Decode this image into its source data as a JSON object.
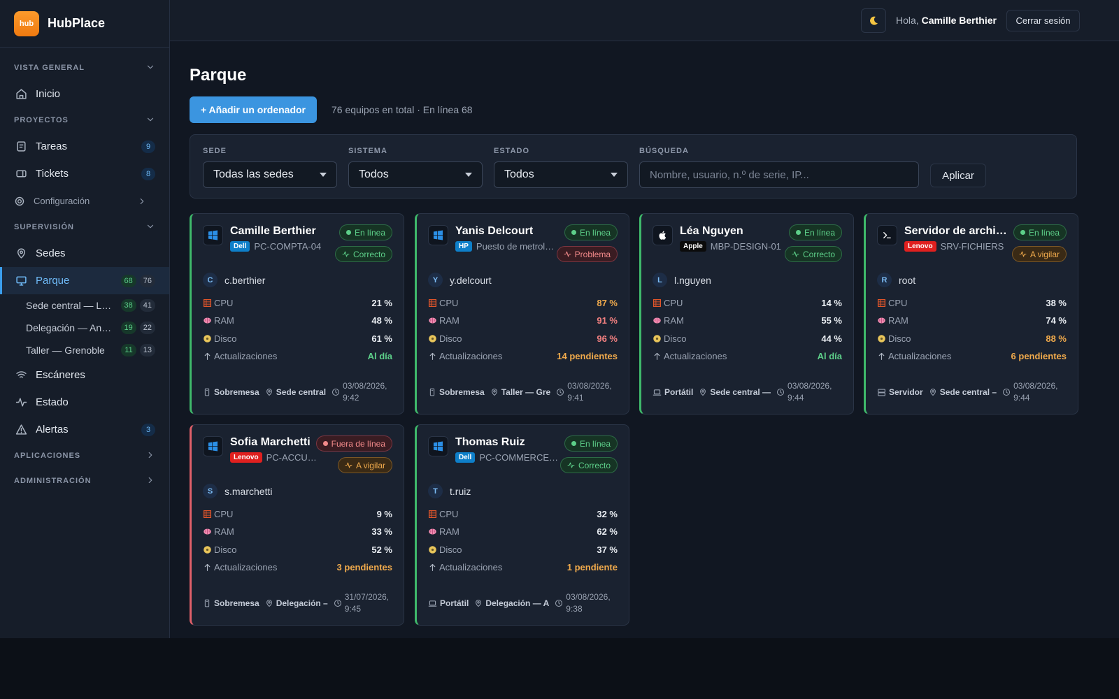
{
  "brand": {
    "logo": "hub",
    "name": "HubPlace"
  },
  "topbar": {
    "greeting": "Hola,",
    "user": "Camille Berthier",
    "logout": "Cerrar sesión"
  },
  "sidebar": {
    "sections": [
      {
        "title": "VISTA GENERAL",
        "expanded": true,
        "items": [
          {
            "label": "Inicio",
            "icon": "home"
          }
        ]
      },
      {
        "title": "PROYECTOS",
        "expanded": true,
        "items": [
          {
            "label": "Tareas",
            "icon": "task",
            "badges": [
              9
            ]
          },
          {
            "label": "Tickets",
            "icon": "ticket",
            "badges": [
              8
            ]
          },
          {
            "label": "Configuración",
            "icon": "gear",
            "minor": true
          }
        ]
      },
      {
        "title": "SUPERVISIÓN",
        "expanded": true,
        "items": [
          {
            "label": "Sedes",
            "icon": "pin"
          },
          {
            "label": "Parque",
            "icon": "monitor",
            "active": true,
            "badges": [
              68,
              76
            ],
            "children": [
              {
                "label": "Sede central — L…",
                "badges": [
                  38,
                  41
                ]
              },
              {
                "label": "Delegación — An…",
                "badges": [
                  19,
                  22
                ]
              },
              {
                "label": "Taller — Grenoble",
                "badges": [
                  11,
                  13
                ]
              }
            ]
          },
          {
            "label": "Escáneres",
            "icon": "wifi"
          },
          {
            "label": "Estado",
            "icon": "pulse"
          },
          {
            "label": "Alertas",
            "icon": "alert",
            "badges": [
              3
            ]
          }
        ]
      },
      {
        "title": "APLICACIONES",
        "expanded": false,
        "items": []
      },
      {
        "title": "ADMINISTRACIÓN",
        "expanded": false,
        "items": []
      }
    ]
  },
  "page": {
    "title": "Parque",
    "add_button": "+ Añadir un ordenador",
    "summary": "76 equipos en total · En línea 68"
  },
  "filters": {
    "selects": [
      {
        "label": "SEDE",
        "value": "Todas las sedes"
      },
      {
        "label": "SISTEMA",
        "value": "Todos"
      },
      {
        "label": "ESTADO",
        "value": "Todos"
      }
    ],
    "search": {
      "label": "BÚSQUEDA",
      "placeholder": "Nombre, usuario, n.º de serie, IP..."
    },
    "apply": "Aplicar"
  },
  "cards": [
    {
      "name": "Camille Berthier",
      "icon": "windows",
      "brand": "Dell",
      "brand_color": "#0e7fc9",
      "model": "PC-COMPTA-04",
      "status": "En línea",
      "status_tone": "good",
      "health": "Correcto",
      "health_tone": "good",
      "initial": "C",
      "user": "c.berthier",
      "metrics": [
        {
          "label": "CPU",
          "value": "21 %",
          "tone": "normal"
        },
        {
          "label": "RAM",
          "value": "48 %",
          "tone": "normal"
        },
        {
          "label": "Disco",
          "value": "61 %",
          "tone": "normal"
        },
        {
          "label": "Actualizaciones",
          "value": "Al día",
          "tone": "good"
        }
      ],
      "type": "Sobremesa",
      "type_icon": "desktop",
      "location": "Sede central",
      "date": "03/08/2026, 9:42"
    },
    {
      "name": "Yanis Delcourt",
      "icon": "windows",
      "brand": "HP",
      "brand_color": "#0e7fc9",
      "model": "Puesto de metrol…",
      "status": "En línea",
      "status_tone": "good",
      "health": "Problema",
      "health_tone": "bad",
      "initial": "Y",
      "user": "y.delcourt",
      "metrics": [
        {
          "label": "CPU",
          "value": "87 %",
          "tone": "warn"
        },
        {
          "label": "RAM",
          "value": "91 %",
          "tone": "bad"
        },
        {
          "label": "Disco",
          "value": "96 %",
          "tone": "bad"
        },
        {
          "label": "Actualizaciones",
          "value": "14 pendientes",
          "tone": "warn"
        }
      ],
      "type": "Sobremesa",
      "type_icon": "desktop",
      "location": "Taller — Gre",
      "date": "03/08/2026, 9:41"
    },
    {
      "name": "Léa Nguyen",
      "icon": "apple",
      "brand": "Apple",
      "brand_color": "#0b0b0b",
      "model": "MBP-DESIGN-01",
      "status": "En línea",
      "status_tone": "good",
      "health": "Correcto",
      "health_tone": "good",
      "initial": "L",
      "user": "l.nguyen",
      "metrics": [
        {
          "label": "CPU",
          "value": "14 %",
          "tone": "normal"
        },
        {
          "label": "RAM",
          "value": "55 %",
          "tone": "normal"
        },
        {
          "label": "Disco",
          "value": "44 %",
          "tone": "normal"
        },
        {
          "label": "Actualizaciones",
          "value": "Al día",
          "tone": "good"
        }
      ],
      "type": "Portátil",
      "type_icon": "laptop",
      "location": "Sede central —",
      "date": "03/08/2026, 9:44"
    },
    {
      "name": "Servidor de archi…",
      "icon": "terminal",
      "brand": "Lenovo",
      "brand_color": "#e0201f",
      "model": "SRV-FICHIERS",
      "status": "En línea",
      "status_tone": "good",
      "health": "A vigilar",
      "health_tone": "warn",
      "initial": "R",
      "user": "root",
      "metrics": [
        {
          "label": "CPU",
          "value": "38 %",
          "tone": "normal"
        },
        {
          "label": "RAM",
          "value": "74 %",
          "tone": "normal"
        },
        {
          "label": "Disco",
          "value": "88 %",
          "tone": "warn"
        },
        {
          "label": "Actualizaciones",
          "value": "6 pendientes",
          "tone": "warn"
        }
      ],
      "type": "Servidor",
      "type_icon": "server",
      "location": "Sede central –",
      "date": "03/08/2026, 9:44"
    },
    {
      "name": "Sofia Marchetti",
      "icon": "windows",
      "brand": "Lenovo",
      "brand_color": "#e0201f",
      "model": "PC-ACCU…",
      "status": "Fuera de línea",
      "status_tone": "bad",
      "health": "A vigilar",
      "health_tone": "warn",
      "initial": "S",
      "user": "s.marchetti",
      "metrics": [
        {
          "label": "CPU",
          "value": "9 %",
          "tone": "normal"
        },
        {
          "label": "RAM",
          "value": "33 %",
          "tone": "normal"
        },
        {
          "label": "Disco",
          "value": "52 %",
          "tone": "normal"
        },
        {
          "label": "Actualizaciones",
          "value": "3 pendientes",
          "tone": "warn"
        }
      ],
      "type": "Sobremesa",
      "type_icon": "desktop",
      "location": "Delegación –",
      "date": "31/07/2026, 9:45"
    },
    {
      "name": "Thomas Ruiz",
      "icon": "windows",
      "brand": "Dell",
      "brand_color": "#0e7fc9",
      "model": "PC-COMMERCE…",
      "status": "En línea",
      "status_tone": "good",
      "health": "Correcto",
      "health_tone": "good",
      "initial": "T",
      "user": "t.ruiz",
      "metrics": [
        {
          "label": "CPU",
          "value": "32 %",
          "tone": "normal"
        },
        {
          "label": "RAM",
          "value": "62 %",
          "tone": "normal"
        },
        {
          "label": "Disco",
          "value": "37 %",
          "tone": "normal"
        },
        {
          "label": "Actualizaciones",
          "value": "1 pendiente",
          "tone": "warn"
        }
      ],
      "type": "Portátil",
      "type_icon": "laptop",
      "location": "Delegación — A",
      "date": "03/08/2026, 9:38"
    }
  ]
}
